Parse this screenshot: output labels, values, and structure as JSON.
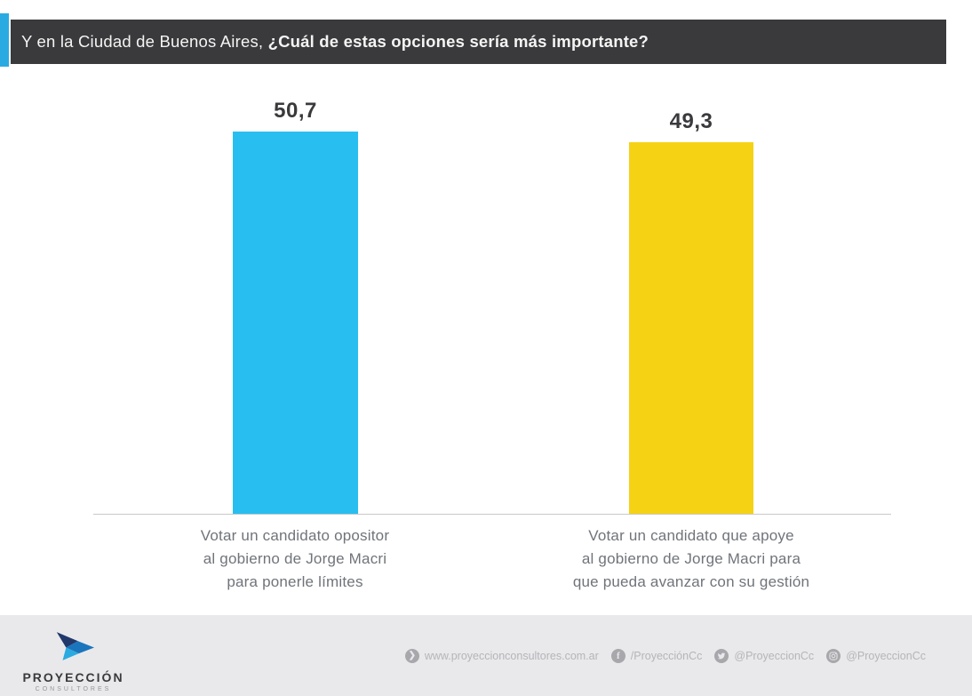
{
  "header": {
    "title_regular": "Y en la Ciudad de Buenos Aires, ",
    "title_bold": "¿Cuál de estas opciones sería más importante?",
    "bar_color": "#3a3a3c",
    "accent_color": "#29abe2"
  },
  "chart_data": {
    "type": "bar",
    "title": "Y en la Ciudad de Buenos Aires, ¿Cuál de estas opciones sería más importante?",
    "categories": [
      "Votar un candidato opositor al gobierno de Jorge Macri para ponerle límites",
      "Votar un candidato que apoye al gobierno de Jorge Macri para que pueda avanzar con su gestión"
    ],
    "categories_lines": [
      [
        "Votar un candidato opositor",
        "al gobierno de Jorge Macri",
        "para ponerle límites"
      ],
      [
        "Votar un candidato que apoye",
        "al gobierno de Jorge Macri para",
        "que pueda avanzar con su gestión"
      ]
    ],
    "values": [
      50.7,
      49.3
    ],
    "value_labels": [
      "50,7",
      "49,3"
    ],
    "bar_colors": [
      "#29bef0",
      "#f6d214"
    ],
    "xlabel": "",
    "ylabel": "",
    "ylim": [
      0,
      50.7
    ],
    "grid": false,
    "legend": false
  },
  "footer": {
    "brand": {
      "name": "PROYECCIÓN",
      "subtitle": "CONSULTORES"
    },
    "links": [
      {
        "icon": "website-icon",
        "label": "www.proyeccionconsultores.com.ar"
      },
      {
        "icon": "facebook-icon",
        "label": "/ProyecciónCc"
      },
      {
        "icon": "twitter-icon",
        "label": "@ProyeccionCc"
      },
      {
        "icon": "instagram-icon",
        "label": "@ProyeccionCc"
      }
    ]
  }
}
